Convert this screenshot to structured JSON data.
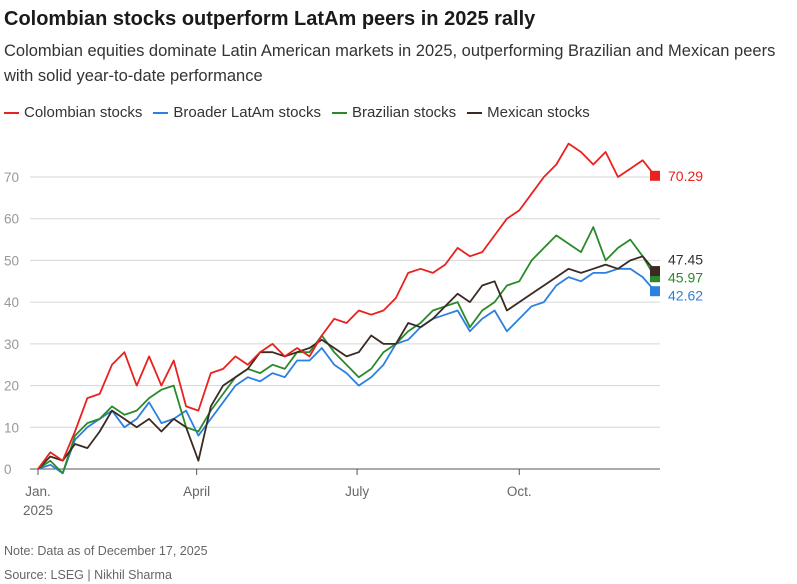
{
  "title": "Colombian stocks outperform LatAm peers in 2025 rally",
  "subtitle": "Colombian equities dominate Latin American markets in 2025, outperforming Brazilian and Mexican peers with solid year-to-date performance",
  "legend": [
    {
      "label": "Colombian stocks",
      "color": "#e8221f"
    },
    {
      "label": "Broader LatAm stocks",
      "color": "#2d7fe0"
    },
    {
      "label": "Brazilian stocks",
      "color": "#2a8a2a"
    },
    {
      "label": "Mexican stocks",
      "color": "#3b2a24"
    }
  ],
  "note": "Note: Data as of December 17, 2025",
  "source": "Source: LSEG | Nikhil Sharma",
  "chart_data": {
    "type": "line",
    "xlabel": "",
    "ylabel": "",
    "ylim": [
      0,
      80
    ],
    "yticks": [
      0,
      10,
      20,
      30,
      40,
      50,
      60,
      70
    ],
    "grid": true,
    "xlim": [
      "2025-01-01",
      "2025-12-17"
    ],
    "xticks": [
      {
        "date": "2025-01-01",
        "label": "Jan.",
        "sublabel": "2025"
      },
      {
        "date": "2025-04-01",
        "label": "April",
        "sublabel": ""
      },
      {
        "date": "2025-07-01",
        "label": "July",
        "sublabel": ""
      },
      {
        "date": "2025-10-01",
        "label": "Oct.",
        "sublabel": ""
      }
    ],
    "series": [
      {
        "name": "Colombian stocks",
        "color": "#e8221f",
        "end_label": "70.29",
        "x": [
          "2025-01-01",
          "2025-01-08",
          "2025-01-15",
          "2025-01-22",
          "2025-01-29",
          "2025-02-05",
          "2025-02-12",
          "2025-02-19",
          "2025-02-26",
          "2025-03-05",
          "2025-03-12",
          "2025-03-19",
          "2025-03-26",
          "2025-04-02",
          "2025-04-09",
          "2025-04-16",
          "2025-04-23",
          "2025-04-30",
          "2025-05-07",
          "2025-05-14",
          "2025-05-21",
          "2025-05-28",
          "2025-06-04",
          "2025-06-11",
          "2025-06-18",
          "2025-06-25",
          "2025-07-02",
          "2025-07-09",
          "2025-07-16",
          "2025-07-23",
          "2025-07-30",
          "2025-08-06",
          "2025-08-13",
          "2025-08-20",
          "2025-08-27",
          "2025-09-03",
          "2025-09-10",
          "2025-09-17",
          "2025-09-24",
          "2025-10-01",
          "2025-10-08",
          "2025-10-15",
          "2025-10-22",
          "2025-10-29",
          "2025-11-05",
          "2025-11-12",
          "2025-11-19",
          "2025-11-26",
          "2025-12-03",
          "2025-12-10",
          "2025-12-17"
        ],
        "values": [
          0,
          4,
          2,
          9,
          17,
          18,
          25,
          28,
          20,
          27,
          20,
          26,
          15,
          14,
          23,
          24,
          27,
          25,
          28,
          30,
          27,
          29,
          27,
          32,
          36,
          35,
          38,
          37,
          38,
          41,
          47,
          48,
          47,
          49,
          53,
          51,
          52,
          56,
          60,
          62,
          66,
          70,
          73,
          78,
          76,
          73,
          76,
          70,
          72,
          74,
          70.29
        ]
      },
      {
        "name": "Broader LatAm stocks",
        "color": "#2d7fe0",
        "end_label": "42.62",
        "x": [
          "2025-01-01",
          "2025-01-08",
          "2025-01-15",
          "2025-01-22",
          "2025-01-29",
          "2025-02-05",
          "2025-02-12",
          "2025-02-19",
          "2025-02-26",
          "2025-03-05",
          "2025-03-12",
          "2025-03-19",
          "2025-03-26",
          "2025-04-02",
          "2025-04-09",
          "2025-04-16",
          "2025-04-23",
          "2025-04-30",
          "2025-05-07",
          "2025-05-14",
          "2025-05-21",
          "2025-05-28",
          "2025-06-04",
          "2025-06-11",
          "2025-06-18",
          "2025-06-25",
          "2025-07-02",
          "2025-07-09",
          "2025-07-16",
          "2025-07-23",
          "2025-07-30",
          "2025-08-06",
          "2025-08-13",
          "2025-08-20",
          "2025-08-27",
          "2025-09-03",
          "2025-09-10",
          "2025-09-17",
          "2025-09-24",
          "2025-10-01",
          "2025-10-08",
          "2025-10-15",
          "2025-10-22",
          "2025-10-29",
          "2025-11-05",
          "2025-11-12",
          "2025-11-19",
          "2025-11-26",
          "2025-12-03",
          "2025-12-10",
          "2025-12-17"
        ],
        "values": [
          0,
          1,
          -1,
          7,
          10,
          12,
          14,
          10,
          12,
          16,
          11,
          12,
          14,
          8,
          12,
          16,
          20,
          22,
          21,
          23,
          22,
          26,
          26,
          29,
          25,
          23,
          20,
          22,
          25,
          30,
          31,
          34,
          36,
          37,
          38,
          33,
          36,
          38,
          33,
          36,
          39,
          40,
          44,
          46,
          45,
          47,
          47,
          48,
          48,
          46,
          42.62
        ]
      },
      {
        "name": "Brazilian stocks",
        "color": "#2a8a2a",
        "end_label": "45.97",
        "x": [
          "2025-01-01",
          "2025-01-08",
          "2025-01-15",
          "2025-01-22",
          "2025-01-29",
          "2025-02-05",
          "2025-02-12",
          "2025-02-19",
          "2025-02-26",
          "2025-03-05",
          "2025-03-12",
          "2025-03-19",
          "2025-03-26",
          "2025-04-02",
          "2025-04-09",
          "2025-04-16",
          "2025-04-23",
          "2025-04-30",
          "2025-05-07",
          "2025-05-14",
          "2025-05-21",
          "2025-05-28",
          "2025-06-04",
          "2025-06-11",
          "2025-06-18",
          "2025-06-25",
          "2025-07-02",
          "2025-07-09",
          "2025-07-16",
          "2025-07-23",
          "2025-07-30",
          "2025-08-06",
          "2025-08-13",
          "2025-08-20",
          "2025-08-27",
          "2025-09-03",
          "2025-09-10",
          "2025-09-17",
          "2025-09-24",
          "2025-10-01",
          "2025-10-08",
          "2025-10-15",
          "2025-10-22",
          "2025-10-29",
          "2025-11-05",
          "2025-11-12",
          "2025-11-19",
          "2025-11-26",
          "2025-12-03",
          "2025-12-10",
          "2025-12-17"
        ],
        "values": [
          0,
          2,
          -1,
          8,
          11,
          12,
          15,
          13,
          14,
          17,
          19,
          20,
          10,
          9,
          14,
          18,
          22,
          24,
          23,
          25,
          24,
          28,
          28,
          32,
          28,
          25,
          22,
          24,
          28,
          30,
          33,
          35,
          38,
          39,
          40,
          34,
          38,
          40,
          44,
          45,
          50,
          53,
          56,
          54,
          52,
          58,
          50,
          53,
          55,
          51,
          45.97
        ]
      },
      {
        "name": "Mexican stocks",
        "color": "#3b2a24",
        "end_label": "47.45",
        "x": [
          "2025-01-01",
          "2025-01-08",
          "2025-01-15",
          "2025-01-22",
          "2025-01-29",
          "2025-02-05",
          "2025-02-12",
          "2025-02-19",
          "2025-02-26",
          "2025-03-05",
          "2025-03-12",
          "2025-03-19",
          "2025-03-26",
          "2025-04-02",
          "2025-04-09",
          "2025-04-16",
          "2025-04-23",
          "2025-04-30",
          "2025-05-07",
          "2025-05-14",
          "2025-05-21",
          "2025-05-28",
          "2025-06-04",
          "2025-06-11",
          "2025-06-18",
          "2025-06-25",
          "2025-07-02",
          "2025-07-09",
          "2025-07-16",
          "2025-07-23",
          "2025-07-30",
          "2025-08-06",
          "2025-08-13",
          "2025-08-20",
          "2025-08-27",
          "2025-09-03",
          "2025-09-10",
          "2025-09-17",
          "2025-09-24",
          "2025-10-01",
          "2025-10-08",
          "2025-10-15",
          "2025-10-22",
          "2025-10-29",
          "2025-11-05",
          "2025-11-12",
          "2025-11-19",
          "2025-11-26",
          "2025-12-03",
          "2025-12-10",
          "2025-12-17"
        ],
        "values": [
          0,
          3,
          2,
          6,
          5,
          9,
          14,
          12,
          10,
          12,
          9,
          12,
          10,
          2,
          15,
          20,
          22,
          24,
          28,
          28,
          27,
          28,
          29,
          31,
          29,
          27,
          28,
          32,
          30,
          30,
          35,
          34,
          36,
          39,
          42,
          40,
          44,
          45,
          38,
          40,
          42,
          44,
          46,
          48,
          47,
          48,
          49,
          48,
          50,
          51,
          47.45
        ]
      }
    ]
  }
}
